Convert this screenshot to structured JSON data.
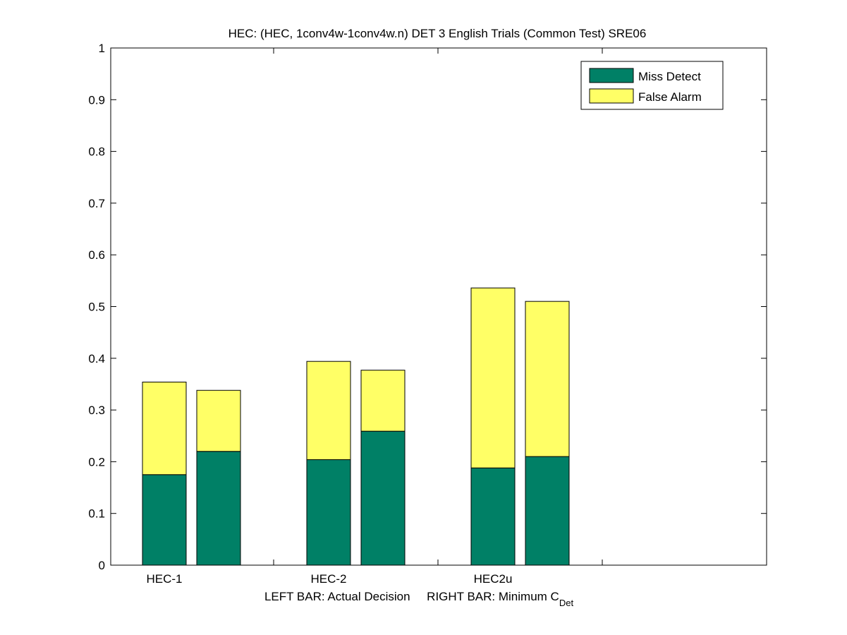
{
  "chart_data": {
    "type": "bar",
    "stacked": true,
    "title": "HEC: (HEC, 1conv4w-1conv4w.n) DET 3 English Trials (Common Test) SRE06",
    "xlabel_parts": {
      "left": "LEFT BAR: Actual Decision",
      "right": "RIGHT BAR: Minimum C",
      "right_subscript": "Det"
    },
    "ylabel": "",
    "ylim": [
      0,
      1
    ],
    "yticks": [
      "0",
      "0.1",
      "0.2",
      "0.3",
      "0.4",
      "0.5",
      "0.6",
      "0.7",
      "0.8",
      "0.9",
      "1"
    ],
    "categories": [
      "HEC-1",
      "HEC-2",
      "HEC2u"
    ],
    "bars_per_category": [
      "Actual Decision",
      "Minimum C_Det"
    ],
    "series": [
      {
        "name": "Miss Detect",
        "color": "#008066",
        "values": [
          [
            0.175,
            0.22
          ],
          [
            0.204,
            0.259
          ],
          [
            0.188,
            0.21
          ]
        ]
      },
      {
        "name": "False Alarm",
        "color": "#ffff66",
        "values": [
          [
            0.179,
            0.118
          ],
          [
            0.19,
            0.118
          ],
          [
            0.348,
            0.3
          ]
        ]
      }
    ],
    "legend_placement": "top-right",
    "grid": false
  }
}
